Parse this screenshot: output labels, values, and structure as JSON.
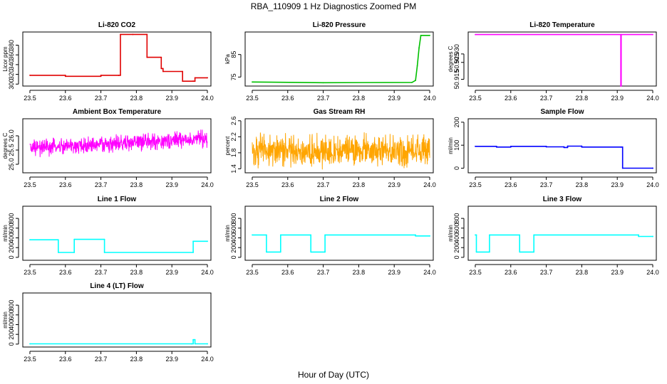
{
  "figure": {
    "title": "RBA_110909  1 Hz Diagnostics Zoomed PM",
    "xlabel": "Hour of Day (UTC)"
  },
  "colors": {
    "red": "#e00000",
    "green": "#00c000",
    "magenta": "#ff00ff",
    "orange": "#ffa500",
    "blue": "#0000ff",
    "cyan": "#00ffff",
    "axis": "#000000"
  },
  "chart_data": [
    {
      "type": "line",
      "title": "Li-820 CO2",
      "ylabel": "Licor ppm",
      "color": "red",
      "xlim": [
        23.48,
        24.01
      ],
      "ylim": [
        296,
        407
      ],
      "xticks": [
        23.5,
        23.6,
        23.7,
        23.8,
        23.9,
        24.0
      ],
      "xtick_labels": [
        "23.5",
        "23.6",
        "23.7",
        "23.8",
        "23.9",
        "24.0"
      ],
      "yticks": [
        300,
        320,
        340,
        360,
        380
      ],
      "ytick_labels": [
        "300",
        "320",
        "340",
        "360",
        "380"
      ],
      "series": [
        {
          "name": "CO2",
          "style": "step",
          "x": [
            23.5,
            23.6,
            23.7,
            23.75,
            23.755,
            23.79,
            23.83,
            23.87,
            23.875,
            23.93,
            23.96,
            23.965,
            24.0
          ],
          "y": [
            318,
            316,
            318,
            318,
            402,
            402,
            355,
            332,
            326,
            306,
            306,
            313,
            313
          ]
        }
      ]
    },
    {
      "type": "line",
      "title": "Li-820 Pressure",
      "ylabel": "kPa",
      "color": "green",
      "xlim": [
        23.48,
        24.01
      ],
      "ylim": [
        71,
        95
      ],
      "xticks": [
        23.5,
        23.6,
        23.7,
        23.8,
        23.9,
        24.0
      ],
      "xtick_labels": [
        "23.5",
        "23.6",
        "23.7",
        "23.8",
        "23.9",
        "24.0"
      ],
      "yticks": [
        75,
        85
      ],
      "ytick_labels": [
        "75",
        "85"
      ],
      "series": [
        {
          "name": "Pressure",
          "style": "line",
          "x": [
            23.5,
            23.7,
            23.95,
            23.96,
            23.965,
            23.97,
            23.975,
            24.0
          ],
          "y": [
            72.8,
            72.5,
            72.6,
            73.5,
            80,
            88,
            93.5,
            93.5
          ]
        }
      ]
    },
    {
      "type": "line",
      "title": "Li-820 Temperature",
      "ylabel": "degrees C",
      "color": "magenta",
      "xlim": [
        23.48,
        24.01
      ],
      "ylim": [
        50.911,
        50.943
      ],
      "xticks": [
        23.5,
        23.6,
        23.7,
        23.8,
        23.9,
        24.0
      ],
      "xtick_labels": [
        "23.5",
        "23.6",
        "23.7",
        "23.8",
        "23.9",
        "24.0"
      ],
      "yticks": [
        50.915,
        50.925,
        50.93
      ],
      "ytick_labels": [
        "50.915",
        "50.925",
        "50.930"
      ],
      "series": [
        {
          "name": "Temperature",
          "style": "line",
          "x": [
            23.5,
            23.91,
            23.91,
            23.911,
            23.911,
            24.0
          ],
          "y": [
            50.9415,
            50.9415,
            50.911,
            50.911,
            50.9415,
            50.9415
          ]
        }
      ]
    },
    {
      "type": "line",
      "title": "Ambient Box Temperature",
      "ylabel": "degrees C",
      "color": "magenta",
      "xlim": [
        23.48,
        24.01
      ],
      "ylim": [
        24.7,
        26.6
      ],
      "xticks": [
        23.5,
        23.6,
        23.7,
        23.8,
        23.9,
        24.0
      ],
      "xtick_labels": [
        "23.5",
        "23.6",
        "23.7",
        "23.8",
        "23.9",
        "24.0"
      ],
      "yticks": [
        25.0,
        25.5,
        26.0
      ],
      "ytick_labels": [
        "25.0",
        "25.5",
        "26.0"
      ],
      "series": [
        {
          "name": "Ambient temperature",
          "style": "noise",
          "center": 25.55,
          "spread": 0.55,
          "trend": 0.35
        }
      ]
    },
    {
      "type": "line",
      "title": "Gas Stream RH",
      "ylabel": "percent",
      "color": "orange",
      "xlim": [
        23.48,
        24.01
      ],
      "ylim": [
        1.3,
        2.65
      ],
      "xticks": [
        23.5,
        23.6,
        23.7,
        23.8,
        23.9,
        24.0
      ],
      "xtick_labels": [
        "23.5",
        "23.6",
        "23.7",
        "23.8",
        "23.9",
        "24.0"
      ],
      "yticks": [
        1.4,
        1.8,
        2.2,
        2.6
      ],
      "ytick_labels": [
        "1.4",
        "1.8",
        "2.2",
        "2.6"
      ],
      "series": [
        {
          "name": "RH",
          "style": "noise",
          "center": 1.85,
          "spread": 0.75,
          "trend": 0
        }
      ]
    },
    {
      "type": "line",
      "title": "Sample Flow",
      "ylabel": "ml/min",
      "color": "blue",
      "xlim": [
        23.48,
        24.01
      ],
      "ylim": [
        -20,
        215
      ],
      "xticks": [
        23.5,
        23.6,
        23.7,
        23.8,
        23.9,
        24.0
      ],
      "xtick_labels": [
        "23.5",
        "23.6",
        "23.7",
        "23.8",
        "23.9",
        "24.0"
      ],
      "yticks": [
        0,
        100,
        200
      ],
      "ytick_labels": [
        "0",
        "100",
        "200"
      ],
      "series": [
        {
          "name": "Sample flow",
          "style": "step",
          "x": [
            23.5,
            23.56,
            23.6,
            23.7,
            23.75,
            23.76,
            23.8,
            23.91,
            23.915,
            24.0
          ],
          "y": [
            95,
            92,
            95,
            93,
            90,
            96,
            92,
            92,
            0,
            0
          ]
        }
      ]
    },
    {
      "type": "line",
      "title": "Line 1 Flow",
      "ylabel": "ml/min",
      "color": "cyan",
      "xlim": [
        23.48,
        24.01
      ],
      "ylim": [
        -60,
        1050
      ],
      "xticks": [
        23.5,
        23.6,
        23.7,
        23.8,
        23.9,
        24.0
      ],
      "xtick_labels": [
        "23.5",
        "23.6",
        "23.7",
        "23.8",
        "23.9",
        "24.0"
      ],
      "yticks": [
        0,
        200,
        400,
        600,
        800
      ],
      "ytick_labels": [
        "0",
        "200",
        "400",
        "600",
        "800"
      ],
      "series": [
        {
          "name": "Line 1 flow",
          "style": "step",
          "x": [
            23.5,
            23.58,
            23.625,
            23.71,
            23.96,
            24.0
          ],
          "y": [
            360,
            100,
            370,
            100,
            330,
            330
          ]
        }
      ]
    },
    {
      "type": "line",
      "title": "Line 2 Flow",
      "ylabel": "ml/min",
      "color": "cyan",
      "xlim": [
        23.48,
        24.01
      ],
      "ylim": [
        -60,
        1050
      ],
      "xticks": [
        23.5,
        23.6,
        23.7,
        23.8,
        23.9,
        24.0
      ],
      "xtick_labels": [
        "23.5",
        "23.6",
        "23.7",
        "23.8",
        "23.9",
        "24.0"
      ],
      "yticks": [
        0,
        200,
        400,
        600,
        800
      ],
      "ytick_labels": [
        "0",
        "200",
        "400",
        "600",
        "800"
      ],
      "series": [
        {
          "name": "Line 2 flow",
          "style": "step",
          "x": [
            23.5,
            23.54,
            23.58,
            23.665,
            23.705,
            23.96,
            24.0
          ],
          "y": [
            460,
            110,
            460,
            110,
            460,
            440,
            440
          ]
        }
      ]
    },
    {
      "type": "line",
      "title": "Line 3 Flow",
      "ylabel": "ml/min",
      "color": "cyan",
      "xlim": [
        23.48,
        24.01
      ],
      "ylim": [
        -60,
        1050
      ],
      "xticks": [
        23.5,
        23.6,
        23.7,
        23.8,
        23.9,
        24.0
      ],
      "xtick_labels": [
        "23.5",
        "23.6",
        "23.7",
        "23.8",
        "23.9",
        "24.0"
      ],
      "yticks": [
        0,
        200,
        400,
        600,
        800
      ],
      "ytick_labels": [
        "0",
        "200",
        "400",
        "600",
        "800"
      ],
      "series": [
        {
          "name": "Line 3 flow",
          "style": "step",
          "x": [
            23.5,
            23.503,
            23.54,
            23.625,
            23.665,
            23.96,
            24.0
          ],
          "y": [
            460,
            110,
            460,
            110,
            460,
            430,
            430
          ]
        }
      ]
    },
    {
      "type": "line",
      "title": "Line 4 (LT) Flow",
      "ylabel": "ml/min",
      "color": "cyan",
      "xlim": [
        23.48,
        24.01
      ],
      "ylim": [
        -60,
        1050
      ],
      "xticks": [
        23.5,
        23.6,
        23.7,
        23.8,
        23.9,
        24.0
      ],
      "xtick_labels": [
        "23.5",
        "23.6",
        "23.7",
        "23.8",
        "23.9",
        "24.0"
      ],
      "yticks": [
        0,
        200,
        400,
        600,
        800
      ],
      "ytick_labels": [
        "0",
        "200",
        "400",
        "600",
        "800"
      ],
      "series": [
        {
          "name": "Line 4 flow",
          "style": "step",
          "x": [
            23.5,
            23.955,
            23.96,
            23.965,
            24.0
          ],
          "y": [
            5,
            5,
            90,
            5,
            5
          ]
        }
      ]
    }
  ]
}
